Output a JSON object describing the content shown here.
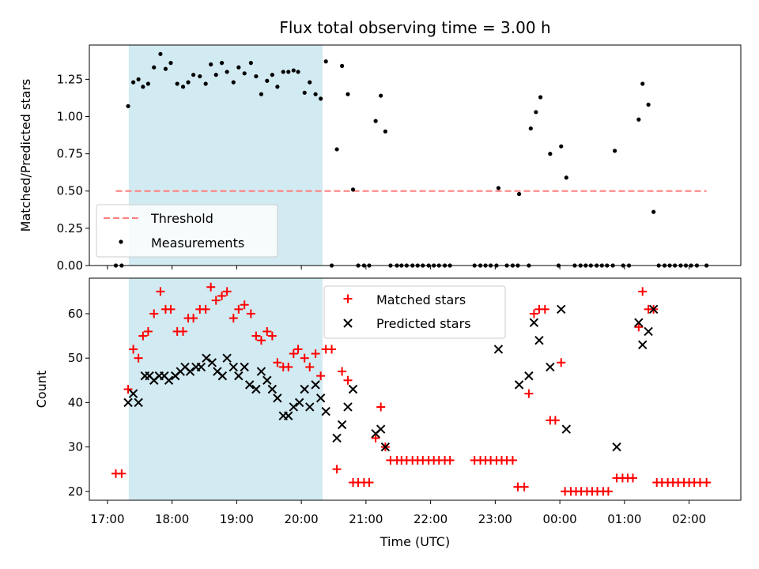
{
  "colors": {
    "matched": "#ff0000",
    "predicted": "#000000",
    "threshold": "#ff7f7f",
    "measurement": "#000000",
    "shade": "#add8e6"
  },
  "chart_data": [
    {
      "type": "scatter",
      "title": "Flux total observing time = 3.00 h",
      "xlabel": "",
      "ylabel": "Matched/Predicted stars",
      "x_unit": "hours since 17:00 UTC",
      "xlim": [
        -0.28,
        9.8
      ],
      "ylim": [
        0,
        1.48
      ],
      "yticks": [
        0.0,
        0.25,
        0.5,
        0.75,
        1.0,
        1.25
      ],
      "ytick_labels": [
        "0.00",
        "0.25",
        "0.50",
        "0.75",
        "1.00",
        "1.25"
      ],
      "shaded_x_range": [
        0.33,
        3.33
      ],
      "threshold": {
        "label": "Threshold",
        "value": 0.5,
        "x_range": [
          0.13,
          9.27
        ]
      },
      "legend": [
        "Threshold",
        "Measurements"
      ],
      "legend_position": "lower-left",
      "series": [
        {
          "name": "Measurements",
          "points": [
            [
              0.13,
              0
            ],
            [
              0.22,
              0
            ],
            [
              0.32,
              1.07
            ],
            [
              0.4,
              1.23
            ],
            [
              0.48,
              1.25
            ],
            [
              0.55,
              1.2
            ],
            [
              0.63,
              1.22
            ],
            [
              0.72,
              1.33
            ],
            [
              0.82,
              1.42
            ],
            [
              0.9,
              1.32
            ],
            [
              0.98,
              1.36
            ],
            [
              1.08,
              1.22
            ],
            [
              1.17,
              1.2
            ],
            [
              1.25,
              1.23
            ],
            [
              1.33,
              1.28
            ],
            [
              1.43,
              1.27
            ],
            [
              1.52,
              1.22
            ],
            [
              1.6,
              1.35
            ],
            [
              1.68,
              1.28
            ],
            [
              1.77,
              1.36
            ],
            [
              1.85,
              1.3
            ],
            [
              1.95,
              1.23
            ],
            [
              2.03,
              1.33
            ],
            [
              2.12,
              1.29
            ],
            [
              2.22,
              1.36
            ],
            [
              2.3,
              1.27
            ],
            [
              2.38,
              1.15
            ],
            [
              2.47,
              1.24
            ],
            [
              2.55,
              1.28
            ],
            [
              2.63,
              1.2
            ],
            [
              2.72,
              1.3
            ],
            [
              2.8,
              1.3
            ],
            [
              2.88,
              1.31
            ],
            [
              2.95,
              1.3
            ],
            [
              3.05,
              1.16
            ],
            [
              3.13,
              1.23
            ],
            [
              3.22,
              1.15
            ],
            [
              3.3,
              1.12
            ],
            [
              3.38,
              1.37
            ],
            [
              3.47,
              0
            ],
            [
              3.55,
              0.78
            ],
            [
              3.63,
              1.34
            ],
            [
              3.72,
              1.15
            ],
            [
              3.8,
              0.51
            ],
            [
              3.88,
              0
            ],
            [
              3.97,
              0
            ],
            [
              4.05,
              0
            ],
            [
              4.15,
              0.97
            ],
            [
              4.23,
              1.14
            ],
            [
              4.3,
              0.9
            ],
            [
              4.38,
              0
            ],
            [
              4.48,
              0
            ],
            [
              4.55,
              0
            ],
            [
              4.63,
              0
            ],
            [
              4.72,
              0
            ],
            [
              4.8,
              0
            ],
            [
              4.88,
              0
            ],
            [
              4.97,
              0
            ],
            [
              5.05,
              0
            ],
            [
              5.13,
              0
            ],
            [
              5.22,
              0
            ],
            [
              5.3,
              0
            ],
            [
              5.68,
              0
            ],
            [
              5.77,
              0
            ],
            [
              5.85,
              0
            ],
            [
              5.93,
              0
            ],
            [
              6.02,
              0
            ],
            [
              6.05,
              0.52
            ],
            [
              6.18,
              0
            ],
            [
              6.27,
              0
            ],
            [
              6.35,
              0
            ],
            [
              6.37,
              0.48
            ],
            [
              6.52,
              0
            ],
            [
              6.55,
              0.92
            ],
            [
              6.63,
              1.03
            ],
            [
              6.7,
              1.13
            ],
            [
              6.85,
              0.75
            ],
            [
              6.98,
              0
            ],
            [
              7.02,
              0.8
            ],
            [
              7.1,
              0.59
            ],
            [
              7.23,
              0
            ],
            [
              7.32,
              0
            ],
            [
              7.4,
              0
            ],
            [
              7.48,
              0
            ],
            [
              7.57,
              0
            ],
            [
              7.65,
              0
            ],
            [
              7.73,
              0
            ],
            [
              7.82,
              0
            ],
            [
              7.85,
              0.77
            ],
            [
              7.98,
              0
            ],
            [
              8.07,
              0
            ],
            [
              8.22,
              0.98
            ],
            [
              8.28,
              1.22
            ],
            [
              8.37,
              1.08
            ],
            [
              8.45,
              0.36
            ],
            [
              8.53,
              0
            ],
            [
              8.62,
              0
            ],
            [
              8.7,
              0
            ],
            [
              8.78,
              0
            ],
            [
              8.87,
              0
            ],
            [
              8.95,
              0
            ],
            [
              9.03,
              0
            ],
            [
              9.12,
              0
            ],
            [
              9.27,
              0
            ]
          ]
        }
      ]
    },
    {
      "type": "scatter",
      "title": "",
      "xlabel": "Time (UTC)",
      "ylabel": "Count",
      "x_unit": "hours since 17:00 UTC",
      "xlim": [
        -0.28,
        9.8
      ],
      "ylim": [
        18,
        68
      ],
      "yticks": [
        20,
        30,
        40,
        50,
        60
      ],
      "xticks": [
        0,
        1,
        2,
        3,
        4,
        5,
        6,
        7,
        8,
        9
      ],
      "xtick_labels": [
        "17:00",
        "18:00",
        "19:00",
        "20:00",
        "21:00",
        "22:00",
        "23:00",
        "00:00",
        "01:00",
        "02:00"
      ],
      "shaded_x_range": [
        0.33,
        3.33
      ],
      "legend": [
        "Matched stars",
        "Predicted stars"
      ],
      "legend_position": "top-center",
      "series": [
        {
          "name": "Matched stars",
          "marker": "plus",
          "points": [
            [
              0.13,
              24
            ],
            [
              0.22,
              24
            ],
            [
              0.32,
              43
            ],
            [
              0.4,
              52
            ],
            [
              0.48,
              50
            ],
            [
              0.55,
              55
            ],
            [
              0.63,
              56
            ],
            [
              0.72,
              60
            ],
            [
              0.82,
              65
            ],
            [
              0.9,
              61
            ],
            [
              0.98,
              61
            ],
            [
              1.08,
              56
            ],
            [
              1.17,
              56
            ],
            [
              1.25,
              59
            ],
            [
              1.33,
              59
            ],
            [
              1.43,
              61
            ],
            [
              1.52,
              61
            ],
            [
              1.6,
              66
            ],
            [
              1.68,
              63
            ],
            [
              1.77,
              64
            ],
            [
              1.85,
              65
            ],
            [
              1.95,
              59
            ],
            [
              2.03,
              61
            ],
            [
              2.12,
              62
            ],
            [
              2.22,
              60
            ],
            [
              2.3,
              55
            ],
            [
              2.38,
              54
            ],
            [
              2.47,
              56
            ],
            [
              2.55,
              55
            ],
            [
              2.63,
              49
            ],
            [
              2.72,
              48
            ],
            [
              2.8,
              48
            ],
            [
              2.88,
              51
            ],
            [
              2.95,
              52
            ],
            [
              3.05,
              50
            ],
            [
              3.13,
              48
            ],
            [
              3.22,
              51
            ],
            [
              3.3,
              46
            ],
            [
              3.38,
              52
            ],
            [
              3.47,
              52
            ],
            [
              3.55,
              25
            ],
            [
              3.63,
              47
            ],
            [
              3.72,
              45
            ],
            [
              3.8,
              22
            ],
            [
              3.88,
              22
            ],
            [
              3.97,
              22
            ],
            [
              4.05,
              22
            ],
            [
              4.15,
              32
            ],
            [
              4.23,
              39
            ],
            [
              4.3,
              30
            ],
            [
              4.38,
              27
            ],
            [
              4.48,
              27
            ],
            [
              4.55,
              27
            ],
            [
              4.63,
              27
            ],
            [
              4.72,
              27
            ],
            [
              4.8,
              27
            ],
            [
              4.88,
              27
            ],
            [
              4.97,
              27
            ],
            [
              5.05,
              27
            ],
            [
              5.13,
              27
            ],
            [
              5.22,
              27
            ],
            [
              5.3,
              27
            ],
            [
              5.68,
              27
            ],
            [
              5.77,
              27
            ],
            [
              5.85,
              27
            ],
            [
              5.93,
              27
            ],
            [
              6.02,
              27
            ],
            [
              6.1,
              27
            ],
            [
              6.18,
              27
            ],
            [
              6.27,
              27
            ],
            [
              6.35,
              21
            ],
            [
              6.45,
              21
            ],
            [
              6.52,
              42
            ],
            [
              6.6,
              60
            ],
            [
              6.68,
              61
            ],
            [
              6.77,
              61
            ],
            [
              6.85,
              36
            ],
            [
              6.93,
              36
            ],
            [
              7.02,
              49
            ],
            [
              7.08,
              20
            ],
            [
              7.17,
              20
            ],
            [
              7.25,
              20
            ],
            [
              7.33,
              20
            ],
            [
              7.42,
              20
            ],
            [
              7.5,
              20
            ],
            [
              7.58,
              20
            ],
            [
              7.67,
              20
            ],
            [
              7.75,
              20
            ],
            [
              7.88,
              23
            ],
            [
              7.97,
              23
            ],
            [
              8.05,
              23
            ],
            [
              8.13,
              23
            ],
            [
              8.22,
              57
            ],
            [
              8.28,
              65
            ],
            [
              8.37,
              61
            ],
            [
              8.45,
              61
            ],
            [
              8.5,
              22
            ],
            [
              8.58,
              22
            ],
            [
              8.67,
              22
            ],
            [
              8.75,
              22
            ],
            [
              8.83,
              22
            ],
            [
              8.92,
              22
            ],
            [
              9.0,
              22
            ],
            [
              9.08,
              22
            ],
            [
              9.17,
              22
            ],
            [
              9.27,
              22
            ]
          ]
        },
        {
          "name": "Predicted stars",
          "marker": "x",
          "points": [
            [
              0.32,
              40
            ],
            [
              0.4,
              42
            ],
            [
              0.48,
              40
            ],
            [
              0.58,
              46
            ],
            [
              0.65,
              46
            ],
            [
              0.72,
              45
            ],
            [
              0.8,
              46
            ],
            [
              0.88,
              46
            ],
            [
              0.95,
              45
            ],
            [
              1.05,
              46
            ],
            [
              1.13,
              47
            ],
            [
              1.2,
              48
            ],
            [
              1.28,
              47
            ],
            [
              1.37,
              48
            ],
            [
              1.45,
              48
            ],
            [
              1.53,
              50
            ],
            [
              1.62,
              49
            ],
            [
              1.7,
              47
            ],
            [
              1.78,
              46
            ],
            [
              1.85,
              50
            ],
            [
              1.95,
              48
            ],
            [
              2.03,
              46
            ],
            [
              2.12,
              48
            ],
            [
              2.2,
              44
            ],
            [
              2.3,
              43
            ],
            [
              2.38,
              47
            ],
            [
              2.47,
              45
            ],
            [
              2.55,
              43
            ],
            [
              2.63,
              41
            ],
            [
              2.72,
              37
            ],
            [
              2.8,
              37
            ],
            [
              2.88,
              39
            ],
            [
              2.97,
              40
            ],
            [
              3.05,
              43
            ],
            [
              3.13,
              39
            ],
            [
              3.22,
              44
            ],
            [
              3.3,
              41
            ],
            [
              3.38,
              38
            ],
            [
              3.55,
              32
            ],
            [
              3.63,
              35
            ],
            [
              3.72,
              39
            ],
            [
              3.8,
              43
            ],
            [
              4.15,
              33
            ],
            [
              4.23,
              34
            ],
            [
              4.3,
              30
            ],
            [
              6.05,
              52
            ],
            [
              6.37,
              44
            ],
            [
              6.52,
              46
            ],
            [
              6.6,
              58
            ],
            [
              6.68,
              54
            ],
            [
              6.85,
              48
            ],
            [
              7.02,
              61
            ],
            [
              7.1,
              34
            ],
            [
              7.88,
              30
            ],
            [
              8.22,
              58
            ],
            [
              8.28,
              53
            ],
            [
              8.37,
              56
            ],
            [
              8.45,
              61
            ]
          ]
        }
      ]
    }
  ]
}
